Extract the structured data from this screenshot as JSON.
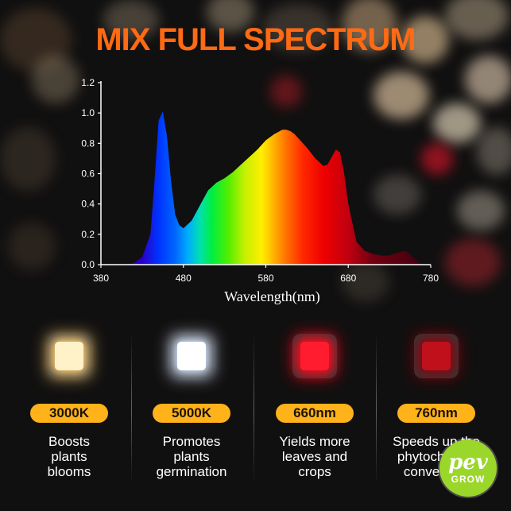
{
  "title": "MIX FULL SPECTRUM",
  "colors": {
    "title": "#ff6a13",
    "pill": "#ffb21a",
    "background": "#111010",
    "logo": "#9bd62b"
  },
  "chart_data": {
    "type": "area",
    "title": "",
    "xlabel": "Wavelength(nm)",
    "ylabel": "",
    "xlim": [
      380,
      780
    ],
    "ylim": [
      0,
      1.2
    ],
    "xticks": [
      380,
      480,
      580,
      680,
      780
    ],
    "yticks": [
      "0.0",
      "0.2",
      "0.4",
      "0.6",
      "0.8",
      "1.0",
      "1.2"
    ],
    "grid": false,
    "legend": "none",
    "series": [
      {
        "x": [
          410,
          420,
          430,
          440,
          445,
          450,
          455,
          460,
          465,
          470,
          475,
          480,
          490,
          500,
          510,
          520,
          530,
          540,
          550,
          560,
          570,
          580,
          590,
          600,
          605,
          610,
          615,
          620,
          630,
          640,
          650,
          655,
          660,
          665,
          670,
          675,
          680,
          690,
          700,
          710,
          720,
          730,
          740,
          750,
          760,
          770
        ],
        "y": [
          0.0,
          0.01,
          0.05,
          0.2,
          0.55,
          0.95,
          1.01,
          0.85,
          0.55,
          0.33,
          0.26,
          0.24,
          0.29,
          0.39,
          0.49,
          0.54,
          0.57,
          0.61,
          0.66,
          0.71,
          0.76,
          0.82,
          0.86,
          0.89,
          0.89,
          0.88,
          0.86,
          0.83,
          0.77,
          0.7,
          0.65,
          0.66,
          0.71,
          0.76,
          0.74,
          0.6,
          0.4,
          0.15,
          0.09,
          0.07,
          0.06,
          0.06,
          0.08,
          0.09,
          0.04,
          0.0
        ]
      }
    ]
  },
  "features": [
    {
      "badge": "3000K",
      "description": "Boosts\nplants\nblooms",
      "led_color": "#fff1c8",
      "led_glow": "#ffd27a"
    },
    {
      "badge": "5000K",
      "description": "Promotes\nplants\ngermination",
      "led_color": "#ffffff",
      "led_glow": "#d8e6ff"
    },
    {
      "badge": "660nm",
      "description": "Yields more\nleaves and\ncrops",
      "led_color": "#ff1c2e",
      "led_glow": "#ff0a1e"
    },
    {
      "badge": "760nm",
      "description": "Speeds up the\nphytochrome\nconversion",
      "led_color": "#c0101c",
      "led_glow": "#8a0610"
    }
  ],
  "logo": {
    "main": "pev",
    "sub": "GROW"
  }
}
